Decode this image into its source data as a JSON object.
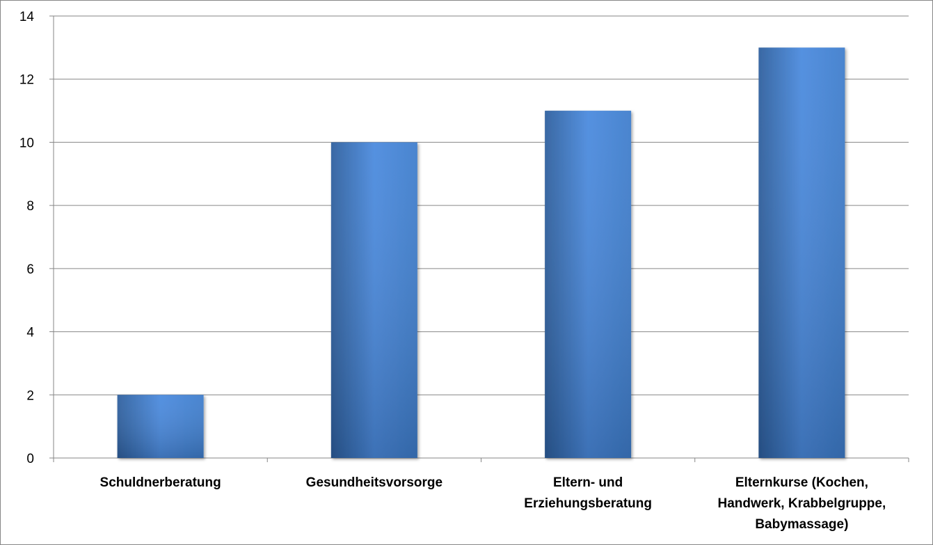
{
  "chart_data": {
    "type": "bar",
    "title": "",
    "xlabel": "",
    "ylabel": "",
    "categories": [
      "Schuldnerberatung",
      "Gesundheitsvorsorge",
      "Eltern- und Erziehungsberatung",
      "Elternkurse (Kochen, Handwerk, Krabbelgruppe, Babymassage)"
    ],
    "category_label_lines": [
      [
        "Schuldnerberatung"
      ],
      [
        "Gesundheitsvorsorge"
      ],
      [
        "Eltern- und",
        "Erziehungsberatung"
      ],
      [
        "Elternkurse (Kochen,",
        "Handwerk, Krabbelgruppe,",
        "Babymassage)"
      ]
    ],
    "values": [
      2,
      10,
      11,
      13
    ],
    "ylim": [
      0,
      14
    ],
    "yticks": [
      "0",
      "2",
      "4",
      "6",
      "8",
      "10",
      "12",
      "14"
    ],
    "grid": true,
    "legend": "none",
    "colors": {
      "bar_light": "#4a8ade",
      "bar_mid": "#3e7dcc",
      "bar_dark": "#2d5f9e",
      "gridline": "#868686",
      "frame": "#868686"
    }
  }
}
